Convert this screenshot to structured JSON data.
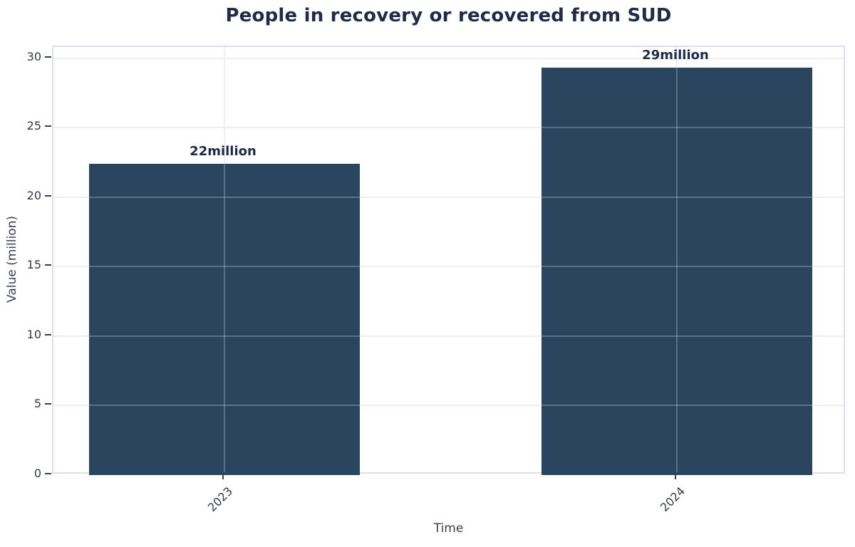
{
  "chart_data": {
    "type": "bar",
    "title": "People in recovery or recovered from SUD",
    "xlabel": "Time",
    "ylabel": "Value (million)",
    "categories": [
      "2023",
      "2024"
    ],
    "values": [
      22.4,
      29.3
    ],
    "bar_labels": [
      "22million",
      "29million"
    ],
    "yticks": [
      0,
      5,
      10,
      15,
      20,
      25,
      30
    ],
    "ylim": [
      0,
      30.8
    ],
    "grid": true,
    "legend": false,
    "style": {
      "bar_color": "#2b455f",
      "title_color": "#202c46",
      "value_label_color": "#202c46",
      "tick_label_color": "#333a49",
      "axis_label_color": "#3a4050",
      "grid_color": "#edf0f6",
      "grid_overlay_color": "rgba(235,240,247,0.25)",
      "plot_border_color": "#dde0ec",
      "tick_mark_color": "#3a4050",
      "background": "#ffffff"
    }
  }
}
